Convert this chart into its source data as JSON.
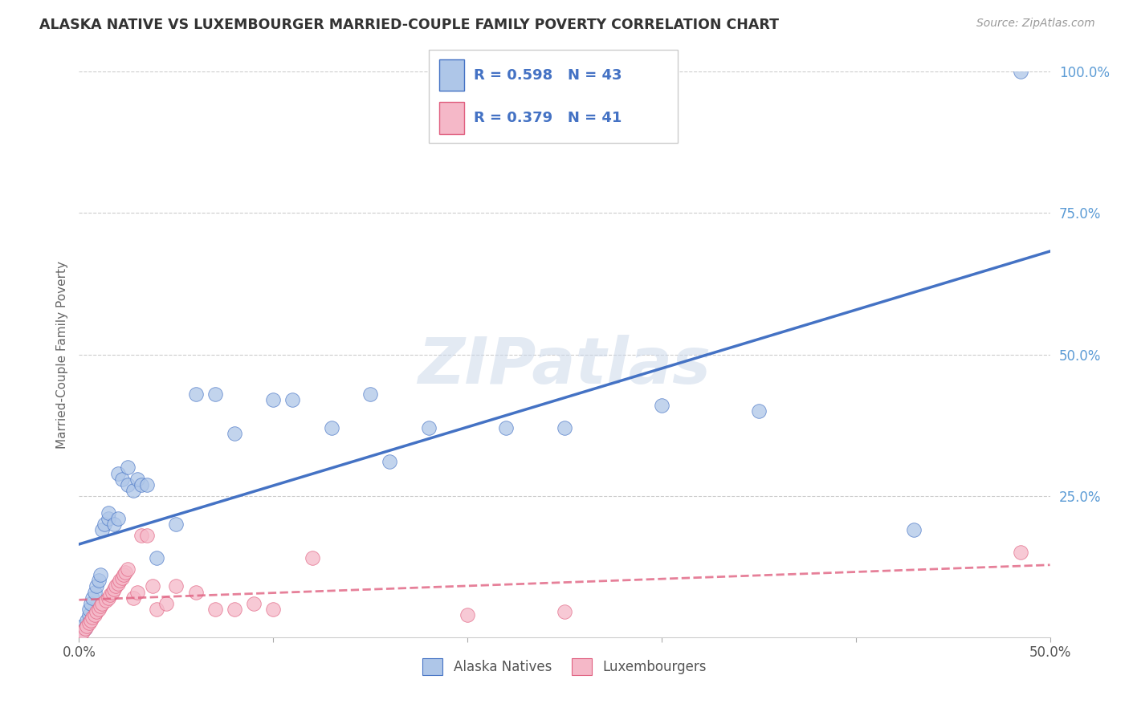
{
  "title": "ALASKA NATIVE VS LUXEMBOURGER MARRIED-COUPLE FAMILY POVERTY CORRELATION CHART",
  "source": "Source: ZipAtlas.com",
  "ylabel_label": "Married-Couple Family Poverty",
  "legend_label1": "Alaska Natives",
  "legend_label2": "Luxembourgers",
  "R1": 0.598,
  "N1": 43,
  "R2": 0.379,
  "N2": 41,
  "color_blue": "#aec6e8",
  "color_pink": "#f5b8c8",
  "line_blue": "#4472c4",
  "line_pink": "#e06080",
  "watermark": "ZIPatlas",
  "xlim": [
    0,
    50
  ],
  "ylim": [
    0,
    100
  ],
  "alaska_x": [
    0.1,
    0.2,
    0.3,
    0.4,
    0.5,
    0.5,
    0.6,
    0.7,
    0.8,
    0.9,
    1.0,
    1.1,
    1.2,
    1.3,
    1.5,
    1.5,
    1.8,
    2.0,
    2.0,
    2.2,
    2.5,
    2.5,
    2.8,
    3.0,
    3.2,
    3.5,
    4.0,
    5.0,
    6.0,
    7.0,
    8.0,
    10.0,
    11.0,
    13.0,
    15.0,
    16.0,
    18.0,
    22.0,
    25.0,
    30.0,
    35.0,
    43.0,
    48.5
  ],
  "alaska_y": [
    1.0,
    2.0,
    1.5,
    3.0,
    4.0,
    5.0,
    6.0,
    7.0,
    8.0,
    9.0,
    10.0,
    11.0,
    19.0,
    20.0,
    21.0,
    22.0,
    20.0,
    29.0,
    21.0,
    28.0,
    27.0,
    30.0,
    26.0,
    28.0,
    27.0,
    27.0,
    14.0,
    20.0,
    43.0,
    43.0,
    36.0,
    42.0,
    42.0,
    37.0,
    43.0,
    31.0,
    37.0,
    37.0,
    37.0,
    41.0,
    40.0,
    19.0,
    100.0
  ],
  "lux_x": [
    0.1,
    0.2,
    0.3,
    0.4,
    0.5,
    0.6,
    0.7,
    0.8,
    0.9,
    1.0,
    1.1,
    1.2,
    1.4,
    1.5,
    1.6,
    1.7,
    1.8,
    1.9,
    2.0,
    2.1,
    2.2,
    2.3,
    2.4,
    2.5,
    2.8,
    3.0,
    3.2,
    3.5,
    3.8,
    4.0,
    4.5,
    5.0,
    6.0,
    7.0,
    8.0,
    9.0,
    10.0,
    12.0,
    20.0,
    25.0,
    48.5
  ],
  "lux_y": [
    0.5,
    1.0,
    1.5,
    2.0,
    2.5,
    3.0,
    3.5,
    4.0,
    4.5,
    5.0,
    5.5,
    6.0,
    6.5,
    7.0,
    7.5,
    8.0,
    8.5,
    9.0,
    9.5,
    10.0,
    10.5,
    11.0,
    11.5,
    12.0,
    7.0,
    8.0,
    18.0,
    18.0,
    9.0,
    5.0,
    6.0,
    9.0,
    8.0,
    5.0,
    5.0,
    6.0,
    5.0,
    14.0,
    4.0,
    4.5,
    15.0
  ]
}
